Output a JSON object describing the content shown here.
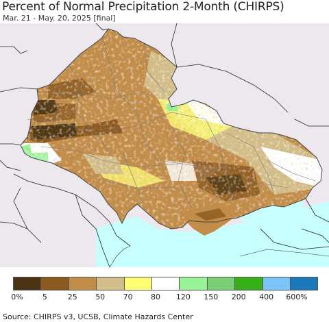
{
  "title": "Percent of Normal Precipitation 2-Month (CHIRPS)",
  "subtitle": "Mar. 21 - May. 20, 2025 [final]",
  "source": "Source: CHIRPS v3, UCSB, Climate Hazards Center",
  "legend": {
    "colors": [
      "#4a3413",
      "#8c5a21",
      "#c28c49",
      "#d3bd89",
      "#fefe74",
      "#ffffff",
      "#98f296",
      "#7acf74",
      "#36b019",
      "#7cc3fa",
      "#1b78b9"
    ],
    "labels": [
      "0%",
      "5",
      "25",
      "50",
      "70",
      "80",
      "120",
      "150",
      "200",
      "400",
      "600%"
    ]
  },
  "map_colors": {
    "outside": "#ece8ee",
    "sea": "#c7fefe",
    "land_dry": "#c28c49",
    "land_mid": "#d3bd89",
    "land_yellow": "#fefe74",
    "land_verydry": "#8c5a21",
    "land_extreme": "#4a3413",
    "land_normal": "#ffffff",
    "land_wet": "#98f296",
    "borders": "#555555"
  }
}
